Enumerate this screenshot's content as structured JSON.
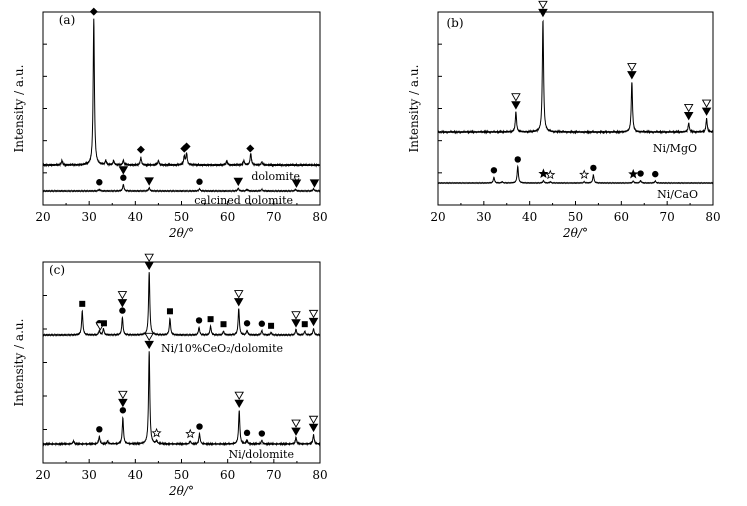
{
  "chart_data": [
    {
      "type": "line",
      "panel_label": "(a)",
      "xlabel": "2θ/°",
      "ylabel": "Intensity / a.u.",
      "xlim": [
        20,
        80
      ],
      "xticks": [
        "20",
        "30",
        "40",
        "50",
        "60",
        "70",
        "80"
      ],
      "grid": false,
      "series": [
        {
          "name": "dolomite",
          "peaks": [
            [
              24.1,
              0.03
            ],
            [
              31.0,
              1.0
            ],
            [
              33.6,
              0.03
            ],
            [
              35.3,
              0.03
            ],
            [
              37.4,
              0.03
            ],
            [
              41.2,
              0.05
            ],
            [
              45.0,
              0.03
            ],
            [
              50.6,
              0.06
            ],
            [
              51.1,
              0.08
            ],
            [
              59.8,
              0.03
            ],
            [
              63.5,
              0.03
            ],
            [
              65.0,
              0.08
            ],
            [
              67.4,
              0.02
            ]
          ],
          "markers": [
            {
              "x": 41.2,
              "symbol": "diamond"
            },
            {
              "x": 50.6,
              "symbol": "diamond"
            },
            {
              "x": 51.1,
              "symbol": "diamond"
            },
            {
              "x": 64.9,
              "symbol": "diamond"
            },
            {
              "x": 31.0,
              "symbol": "diamond"
            }
          ]
        },
        {
          "name": "calcined dolomite",
          "peaks": [
            [
              32.2,
              0.03
            ],
            [
              37.4,
              0.12
            ],
            [
              43.0,
              0.06
            ],
            [
              53.9,
              0.04
            ],
            [
              62.3,
              0.05
            ],
            [
              64.2,
              0.03
            ],
            [
              67.4,
              0.03
            ],
            [
              74.7,
              0.03
            ],
            [
              78.6,
              0.04
            ]
          ],
          "markers": [
            {
              "x": 32.2,
              "symbol": "circle"
            },
            {
              "x": 37.4,
              "symbol": "circle"
            },
            {
              "x": 37.4,
              "symbol": "triangle-down-filled"
            },
            {
              "x": 43.0,
              "symbol": "triangle-down-filled"
            },
            {
              "x": 53.9,
              "symbol": "circle"
            },
            {
              "x": 62.3,
              "symbol": "triangle-down-filled"
            },
            {
              "x": 74.9,
              "symbol": "triangle-down-filled"
            },
            {
              "x": 78.8,
              "symbol": "triangle-down-filled"
            }
          ]
        }
      ]
    },
    {
      "type": "line",
      "panel_label": "(b)",
      "xlabel": "2θ/°",
      "ylabel": "Intensity / a.u.",
      "xlim": [
        20,
        80
      ],
      "xticks": [
        "20",
        "30",
        "40",
        "50",
        "60",
        "70",
        "80"
      ],
      "grid": false,
      "series": [
        {
          "name": "Ni/MgO",
          "peaks": [
            [
              37.0,
              0.18
            ],
            [
              42.9,
              1.0
            ],
            [
              62.3,
              0.45
            ],
            [
              74.7,
              0.08
            ],
            [
              78.6,
              0.12
            ]
          ],
          "markers": [
            {
              "x": 37.0,
              "symbol": "triangle-down-filled"
            },
            {
              "x": 37.0,
              "symbol": "triangle-down-open"
            },
            {
              "x": 42.9,
              "symbol": "triangle-down-filled"
            },
            {
              "x": 42.9,
              "symbol": "triangle-down-open"
            },
            {
              "x": 62.3,
              "symbol": "triangle-down-filled"
            },
            {
              "x": 62.3,
              "symbol": "triangle-down-open"
            },
            {
              "x": 74.7,
              "symbol": "triangle-down-filled"
            },
            {
              "x": 74.7,
              "symbol": "triangle-down-open"
            },
            {
              "x": 78.6,
              "symbol": "triangle-down-filled"
            },
            {
              "x": 78.6,
              "symbol": "triangle-down-open"
            }
          ]
        },
        {
          "name": "Ni/CaO",
          "peaks": [
            [
              32.2,
              0.14
            ],
            [
              34.0,
              0.03
            ],
            [
              37.4,
              0.42
            ],
            [
              43.0,
              0.06
            ],
            [
              44.5,
              0.03
            ],
            [
              51.9,
              0.03
            ],
            [
              53.9,
              0.2
            ],
            [
              62.6,
              0.05
            ],
            [
              64.2,
              0.06
            ],
            [
              67.4,
              0.05
            ]
          ],
          "markers": [
            {
              "x": 32.2,
              "symbol": "circle"
            },
            {
              "x": 37.4,
              "symbol": "circle"
            },
            {
              "x": 43.0,
              "symbol": "star-filled"
            },
            {
              "x": 44.5,
              "symbol": "star-open"
            },
            {
              "x": 51.9,
              "symbol": "star-open"
            },
            {
              "x": 53.9,
              "symbol": "circle"
            },
            {
              "x": 62.6,
              "symbol": "star-filled"
            },
            {
              "x": 64.2,
              "symbol": "circle"
            },
            {
              "x": 67.4,
              "symbol": "circle"
            }
          ]
        }
      ]
    },
    {
      "type": "line",
      "panel_label": "(c)",
      "xlabel": "2θ/°",
      "ylabel": "Intensity / a.u.",
      "xlim": [
        20,
        80
      ],
      "xticks": [
        "20",
        "30",
        "40",
        "50",
        "60",
        "70",
        "80"
      ],
      "grid": false,
      "series": [
        {
          "name": "Ni/10%CeO₂/dolomite",
          "peaks": [
            [
              28.5,
              0.38
            ],
            [
              32.2,
              0.07
            ],
            [
              33.1,
              0.1
            ],
            [
              37.2,
              0.28
            ],
            [
              43.0,
              1.0
            ],
            [
              47.5,
              0.26
            ],
            [
              53.8,
              0.12
            ],
            [
              56.3,
              0.14
            ],
            [
              59.1,
              0.06
            ],
            [
              62.4,
              0.42
            ],
            [
              64.2,
              0.07
            ],
            [
              67.4,
              0.07
            ],
            [
              69.4,
              0.04
            ],
            [
              74.8,
              0.09
            ],
            [
              76.7,
              0.06
            ],
            [
              78.6,
              0.1
            ]
          ],
          "markers": [
            {
              "x": 28.5,
              "symbol": "square"
            },
            {
              "x": 32.2,
              "symbol": "circle"
            },
            {
              "x": 32.4,
              "symbol": "triangle-down-open"
            },
            {
              "x": 33.2,
              "symbol": "square"
            },
            {
              "x": 37.2,
              "symbol": "circle"
            },
            {
              "x": 37.2,
              "symbol": "triangle-down-filled"
            },
            {
              "x": 37.2,
              "symbol": "triangle-down-open"
            },
            {
              "x": 43.0,
              "symbol": "triangle-down-filled"
            },
            {
              "x": 43.0,
              "symbol": "triangle-down-open"
            },
            {
              "x": 47.5,
              "symbol": "square"
            },
            {
              "x": 53.8,
              "symbol": "circle"
            },
            {
              "x": 56.3,
              "symbol": "square"
            },
            {
              "x": 59.1,
              "symbol": "square"
            },
            {
              "x": 62.4,
              "symbol": "triangle-down-filled"
            },
            {
              "x": 62.4,
              "symbol": "triangle-down-open"
            },
            {
              "x": 64.2,
              "symbol": "circle"
            },
            {
              "x": 67.4,
              "symbol": "circle"
            },
            {
              "x": 69.4,
              "symbol": "square"
            },
            {
              "x": 74.8,
              "symbol": "triangle-down-filled"
            },
            {
              "x": 74.8,
              "symbol": "triangle-down-open"
            },
            {
              "x": 76.7,
              "symbol": "square"
            },
            {
              "x": 78.6,
              "symbol": "triangle-down-filled"
            },
            {
              "x": 78.6,
              "symbol": "triangle-down-open"
            }
          ]
        },
        {
          "name": "Ni/dolomite",
          "peaks": [
            [
              26.6,
              0.03
            ],
            [
              32.2,
              0.08
            ],
            [
              34.0,
              0.03
            ],
            [
              37.3,
              0.28
            ],
            [
              43.0,
              1.0
            ],
            [
              44.6,
              0.03
            ],
            [
              51.9,
              0.03
            ],
            [
              53.9,
              0.11
            ],
            [
              62.5,
              0.36
            ],
            [
              64.2,
              0.04
            ],
            [
              67.4,
              0.04
            ],
            [
              74.8,
              0.07
            ],
            [
              78.6,
              0.1
            ]
          ],
          "markers": [
            {
              "x": 32.2,
              "symbol": "circle"
            },
            {
              "x": 37.3,
              "symbol": "circle"
            },
            {
              "x": 37.3,
              "symbol": "triangle-down-filled"
            },
            {
              "x": 37.3,
              "symbol": "triangle-down-open"
            },
            {
              "x": 43.0,
              "symbol": "triangle-down-filled"
            },
            {
              "x": 43.0,
              "symbol": "triangle-down-open"
            },
            {
              "x": 44.6,
              "symbol": "star-open"
            },
            {
              "x": 51.9,
              "symbol": "star-open"
            },
            {
              "x": 53.9,
              "symbol": "circle"
            },
            {
              "x": 62.5,
              "symbol": "triangle-down-filled"
            },
            {
              "x": 62.5,
              "symbol": "triangle-down-open"
            },
            {
              "x": 64.2,
              "symbol": "circle"
            },
            {
              "x": 67.4,
              "symbol": "circle"
            },
            {
              "x": 74.8,
              "symbol": "triangle-down-filled"
            },
            {
              "x": 74.8,
              "symbol": "triangle-down-open"
            },
            {
              "x": 78.6,
              "symbol": "triangle-down-filled"
            },
            {
              "x": 78.6,
              "symbol": "triangle-down-open"
            }
          ]
        }
      ]
    }
  ]
}
